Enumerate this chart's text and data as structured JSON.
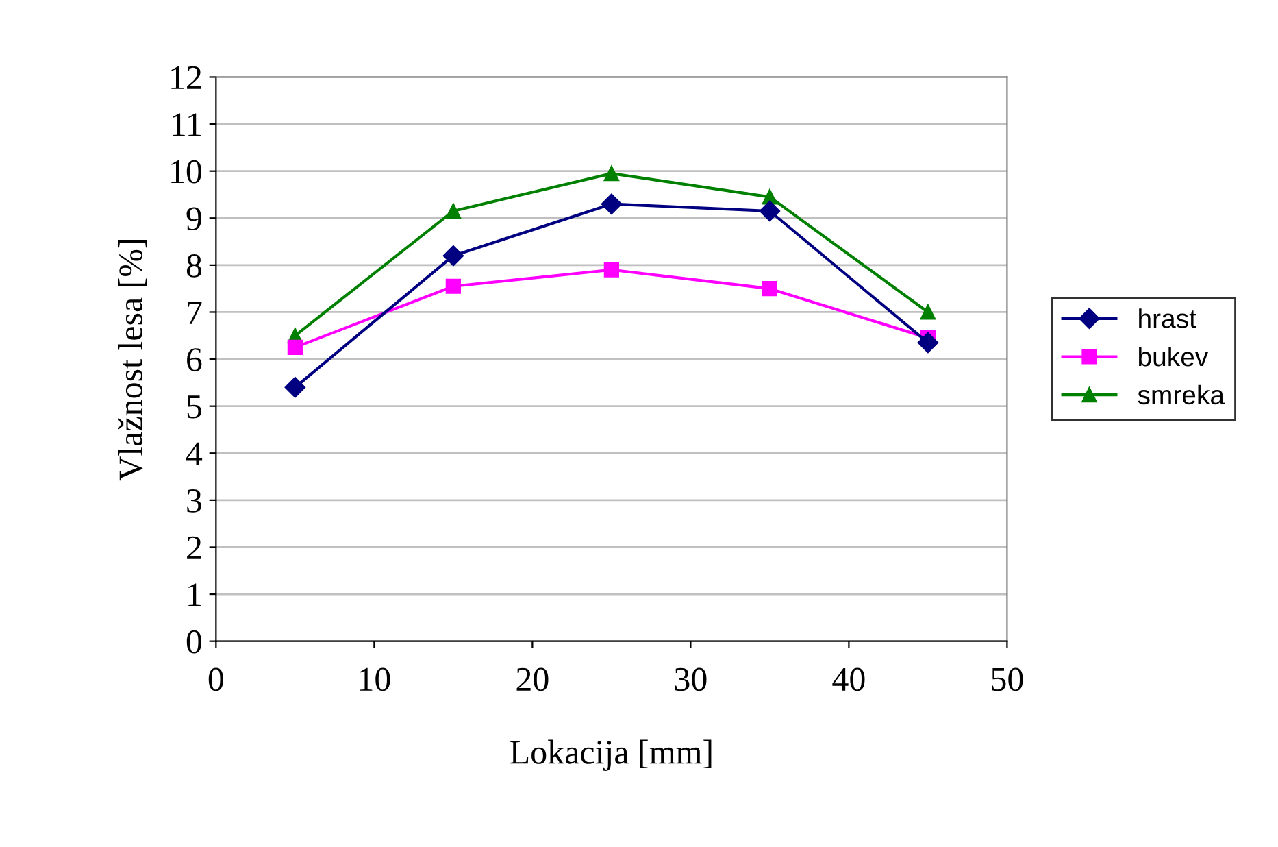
{
  "chart_data": {
    "type": "line",
    "xlabel": "Lokacija [mm]",
    "ylabel": "Vlažnost lesa [%]",
    "x": [
      5,
      15,
      25,
      35,
      45
    ],
    "series": [
      {
        "name": "hrast",
        "color": "#000080",
        "marker": "diamond",
        "values": [
          5.4,
          8.2,
          9.3,
          9.15,
          6.35
        ]
      },
      {
        "name": "bukev",
        "color": "#ff00ff",
        "marker": "square",
        "values": [
          6.25,
          7.55,
          7.9,
          7.5,
          6.45
        ]
      },
      {
        "name": "smreka",
        "color": "#008000",
        "marker": "triangle",
        "values": [
          6.5,
          9.15,
          9.95,
          9.45,
          7.0
        ]
      }
    ],
    "xlim": [
      0,
      50
    ],
    "xticks": [
      0,
      10,
      20,
      30,
      40,
      50
    ],
    "ylim": [
      0,
      12
    ],
    "yticks": [
      0,
      1,
      2,
      3,
      4,
      5,
      6,
      7,
      8,
      9,
      10,
      11,
      12
    ],
    "grid": "y",
    "legend": "right",
    "line_style": "solid"
  }
}
